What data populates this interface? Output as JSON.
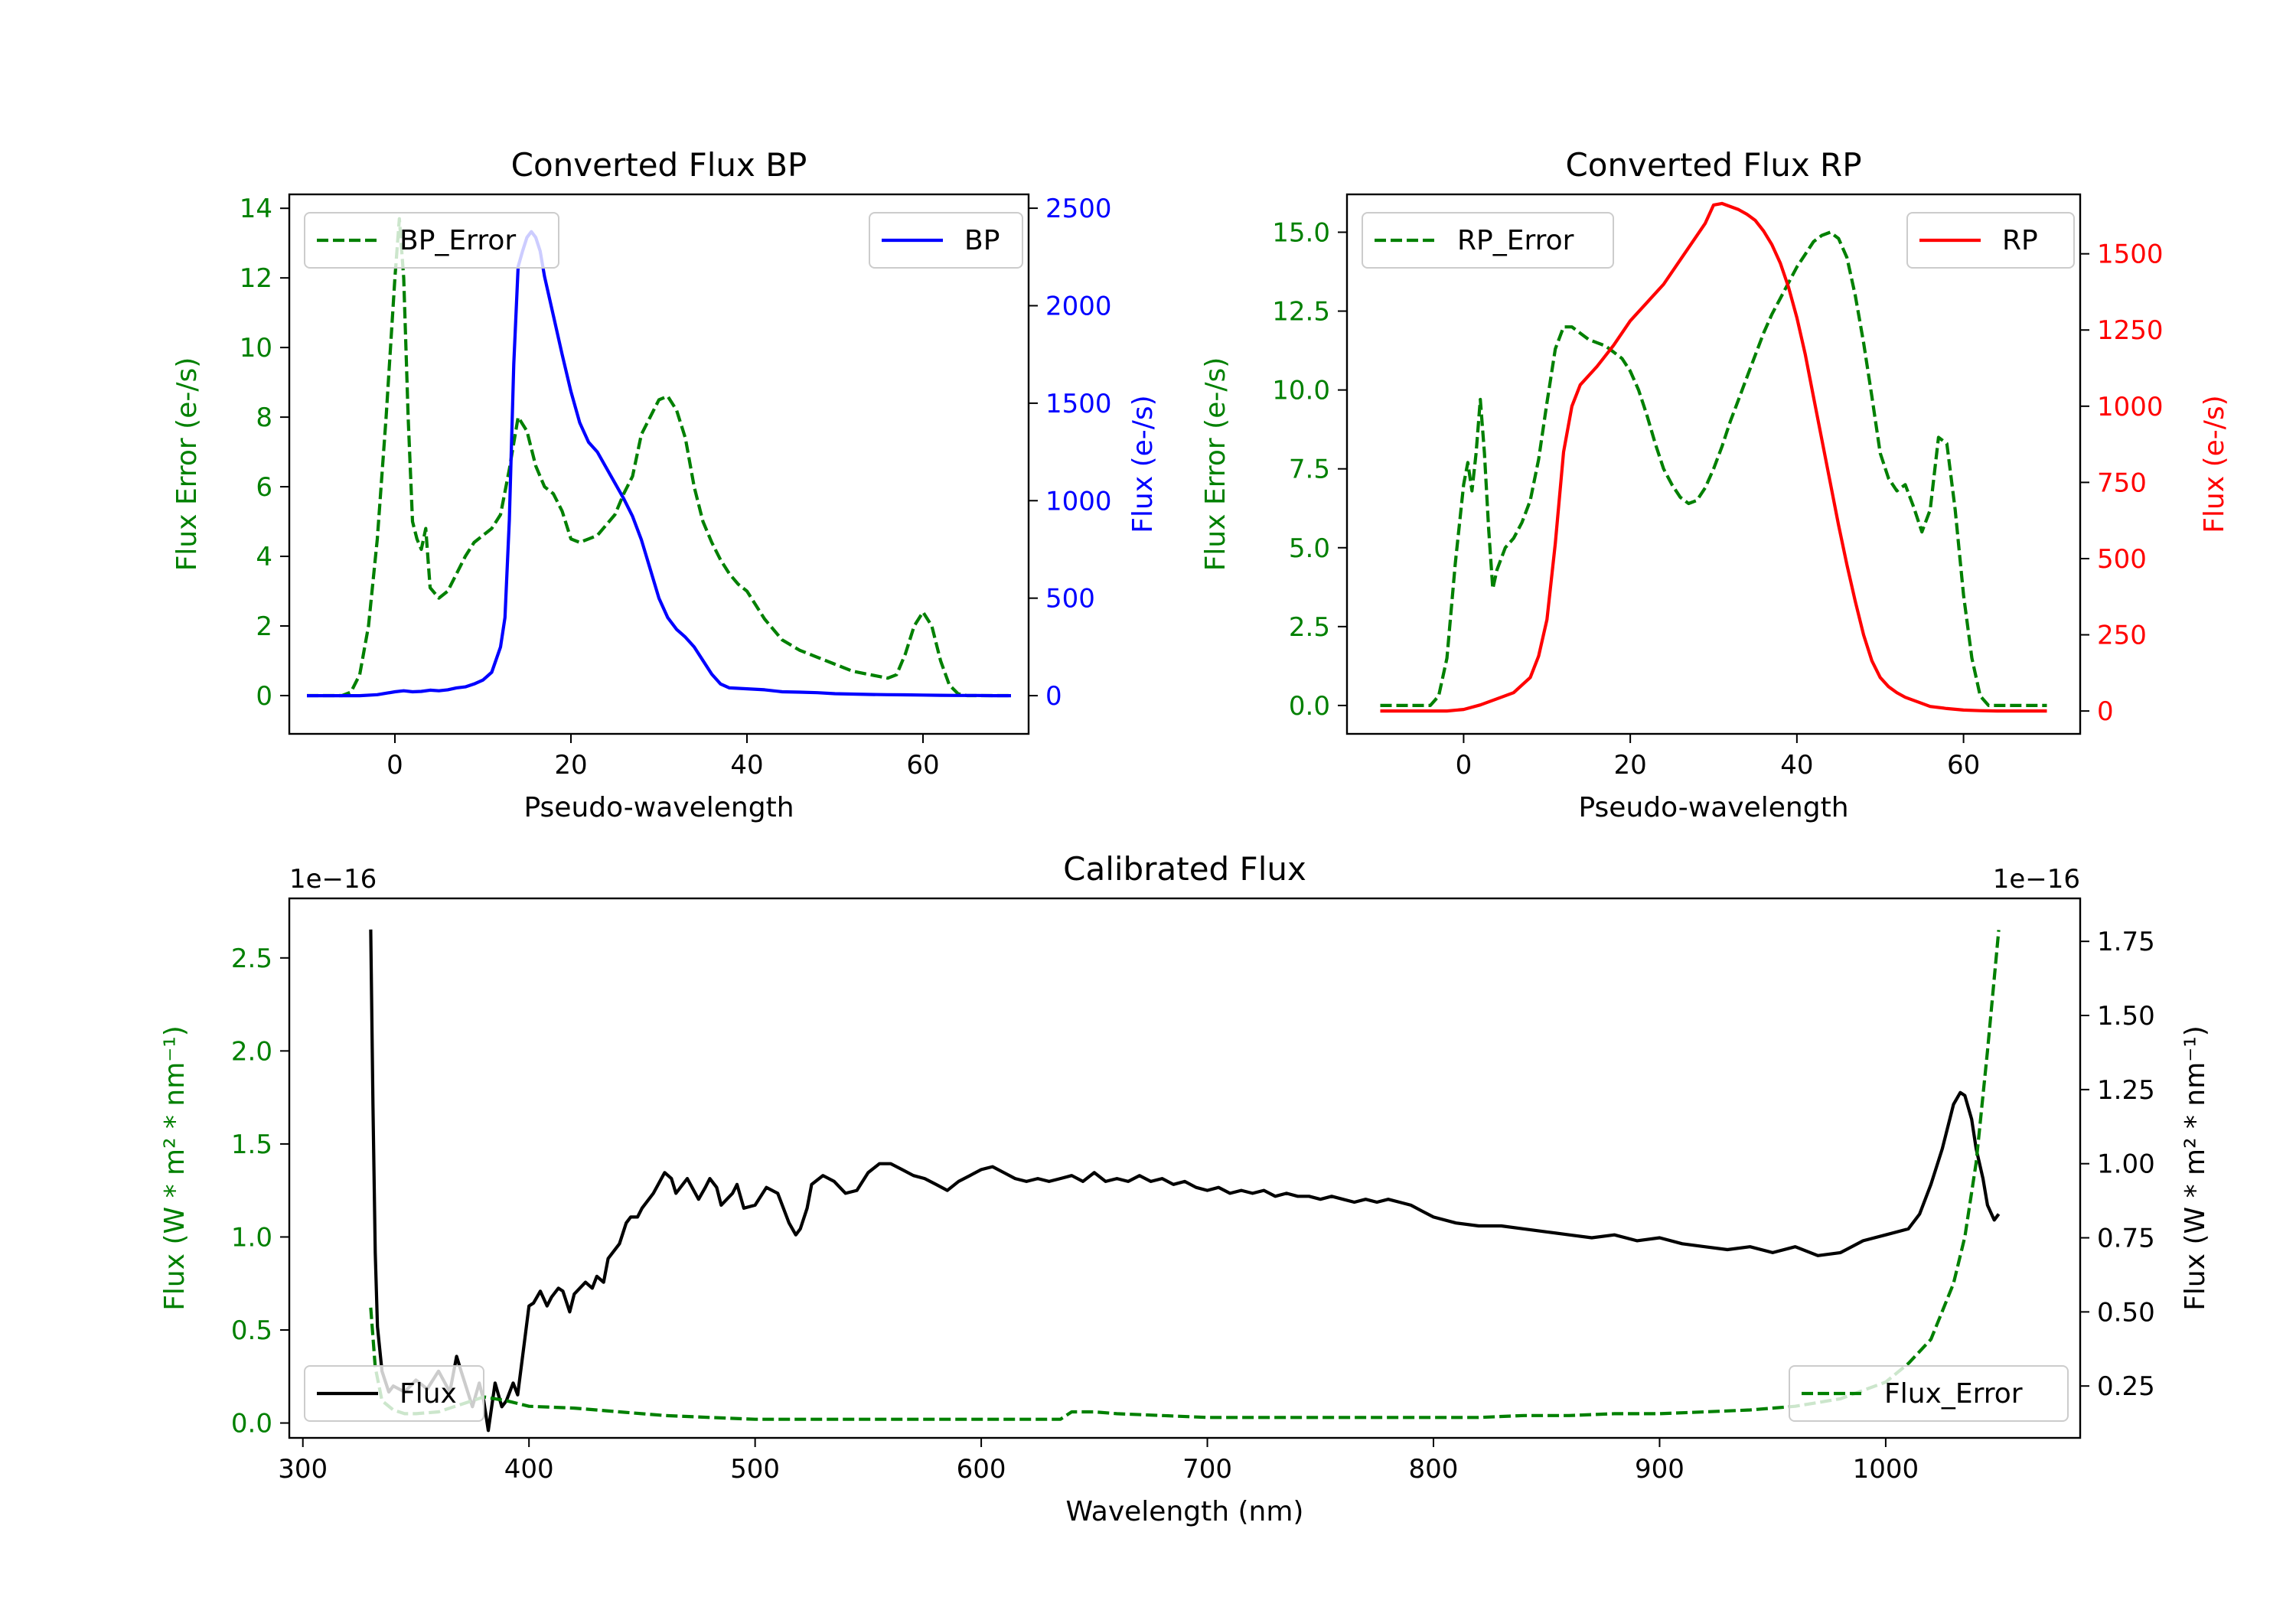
{
  "chart_data": [
    {
      "type": "line",
      "title": "Converted Flux BP",
      "xlabel": "Pseudo-wavelength",
      "ylabel_left": "Flux Error (e-/s)",
      "ylabel_right": "Flux (e-/s)",
      "xlim": [
        -12,
        72
      ],
      "ylim_left": [
        -1.1,
        14.4
      ],
      "ylim_right": [
        -196,
        2571
      ],
      "xticks": [
        0,
        20,
        40,
        60
      ],
      "yticks_left": [
        0,
        2,
        4,
        6,
        8,
        10,
        12,
        14
      ],
      "yticks_right": [
        0,
        500,
        1000,
        1500,
        2000,
        2500
      ],
      "legend_left": "top-left",
      "legend_right": "top-right",
      "colors": {
        "left": "#008000",
        "right": "#0000ff"
      },
      "series": [
        {
          "name": "BP_Error",
          "axis": "left",
          "style": "dashed",
          "x": [
            -10,
            -6,
            -5,
            -4,
            -3,
            -2,
            -1,
            0,
            0.5,
            1,
            1.5,
            2,
            2.5,
            3,
            3.5,
            4,
            5,
            6,
            7,
            8,
            9,
            10,
            11,
            12,
            13,
            14,
            15,
            16,
            17,
            18,
            19,
            20,
            21,
            22,
            23,
            24,
            25,
            26,
            27,
            28,
            29,
            30,
            31,
            32,
            33,
            34,
            35,
            36,
            37,
            38,
            39,
            40,
            42,
            44,
            46,
            48,
            50,
            52,
            54,
            56,
            57,
            58,
            59,
            60,
            61,
            62,
            63,
            64,
            65,
            70
          ],
          "values": [
            0,
            0,
            0.1,
            0.6,
            2,
            4.5,
            8,
            12,
            13.7,
            12,
            8,
            5,
            4.5,
            4.2,
            4.8,
            3.1,
            2.8,
            3.0,
            3.5,
            4.0,
            4.4,
            4.6,
            4.8,
            5.2,
            6.5,
            8.0,
            7.6,
            6.6,
            6.0,
            5.8,
            5.3,
            4.5,
            4.4,
            4.5,
            4.6,
            4.9,
            5.2,
            5.8,
            6.3,
            7.5,
            8.0,
            8.5,
            8.6,
            8.2,
            7.4,
            6.0,
            5.0,
            4.4,
            3.9,
            3.5,
            3.2,
            3.0,
            2.2,
            1.6,
            1.3,
            1.1,
            0.9,
            0.7,
            0.6,
            0.5,
            0.6,
            1.2,
            2.0,
            2.4,
            2.0,
            1.0,
            0.3,
            0.05,
            0,
            0
          ]
        },
        {
          "name": "BP",
          "axis": "right",
          "style": "solid",
          "x": [
            -10,
            -8,
            -6,
            -4,
            -2,
            0,
            1,
            2,
            3,
            4,
            5,
            6,
            7,
            8,
            9,
            10,
            11,
            12,
            12.5,
            13,
            13.5,
            14,
            14.5,
            15,
            15.5,
            16,
            16.5,
            17,
            18,
            19,
            20,
            21,
            22,
            23,
            24,
            25,
            26,
            27,
            28,
            29,
            30,
            31,
            32,
            33,
            34,
            35,
            36,
            37,
            38,
            40,
            42,
            44,
            46,
            48,
            50,
            52,
            54,
            56,
            58,
            60,
            62,
            64,
            66,
            68,
            70
          ],
          "values": [
            0,
            0,
            0,
            0,
            5,
            20,
            25,
            20,
            22,
            28,
            25,
            30,
            40,
            45,
            60,
            80,
            120,
            250,
            400,
            900,
            1700,
            2200,
            2280,
            2350,
            2380,
            2350,
            2280,
            2150,
            1950,
            1750,
            1560,
            1400,
            1300,
            1250,
            1170,
            1090,
            1010,
            920,
            800,
            650,
            500,
            400,
            340,
            300,
            250,
            180,
            110,
            60,
            40,
            35,
            30,
            20,
            18,
            15,
            10,
            8,
            6,
            5,
            4,
            3,
            2,
            1,
            1,
            0,
            0
          ]
        }
      ]
    },
    {
      "type": "line",
      "title": "Converted Flux RP",
      "xlabel": "Pseudo-wavelength",
      "ylabel_left": "Flux Error (e-/s)",
      "ylabel_right": "Flux (e-/s)",
      "xlim": [
        -14,
        74
      ],
      "ylim_left": [
        -0.9,
        16.2
      ],
      "ylim_right": [
        -75,
        1695
      ],
      "xticks": [
        0,
        20,
        40,
        60
      ],
      "yticks_left": [
        "0.0",
        "2.5",
        "5.0",
        "7.5",
        "10.0",
        "12.5",
        "15.0"
      ],
      "yticks_right": [
        0,
        250,
        500,
        750,
        1000,
        1250,
        1500
      ],
      "legend_left": "top-left",
      "legend_right": "top-right",
      "colors": {
        "left": "#008000",
        "right": "#ff0000"
      },
      "series": [
        {
          "name": "RP_Error",
          "axis": "left",
          "style": "dashed",
          "x": [
            -10,
            -5,
            -4,
            -3,
            -2,
            -1,
            0,
            0.5,
            1,
            1.5,
            2,
            2.5,
            3,
            3.5,
            4,
            5,
            6,
            7,
            8,
            9,
            10,
            11,
            12,
            13,
            14,
            15,
            16,
            17,
            18,
            19,
            20,
            21,
            22,
            23,
            24,
            25,
            26,
            27,
            28,
            29,
            30,
            31,
            32,
            33,
            34,
            35,
            36,
            37,
            38,
            39,
            40,
            41,
            42,
            43,
            44,
            45,
            46,
            47,
            48,
            49,
            50,
            51,
            52,
            53,
            54,
            55,
            56,
            57,
            58,
            59,
            60,
            61,
            62,
            63,
            64,
            65,
            70
          ],
          "values": [
            0,
            0,
            0,
            0.3,
            1.5,
            4.5,
            7.0,
            7.7,
            6.8,
            8.0,
            9.7,
            8.0,
            5.6,
            3.7,
            4.3,
            5.0,
            5.3,
            5.8,
            6.5,
            7.8,
            9.6,
            11.3,
            12.0,
            12.0,
            11.8,
            11.6,
            11.5,
            11.4,
            11.2,
            11.0,
            10.6,
            10.0,
            9.2,
            8.3,
            7.5,
            7.0,
            6.6,
            6.4,
            6.5,
            6.9,
            7.5,
            8.2,
            9.0,
            9.7,
            10.4,
            11.1,
            11.8,
            12.4,
            12.9,
            13.4,
            13.9,
            14.3,
            14.7,
            14.9,
            15.0,
            14.8,
            14.2,
            13.0,
            11.5,
            9.8,
            8.0,
            7.2,
            6.8,
            7.0,
            6.3,
            5.5,
            6.2,
            8.5,
            8.3,
            6.2,
            3.5,
            1.5,
            0.3,
            0,
            0,
            0,
            0
          ]
        },
        {
          "name": "RP",
          "axis": "right",
          "style": "solid",
          "x": [
            -10,
            -5,
            -2,
            0,
            2,
            4,
            6,
            8,
            9,
            10,
            11,
            12,
            13,
            14,
            16,
            18,
            20,
            22,
            24,
            26,
            28,
            29,
            30,
            31,
            32,
            33,
            34,
            35,
            36,
            37,
            38,
            39,
            40,
            41,
            42,
            43,
            44,
            45,
            46,
            47,
            48,
            49,
            50,
            51,
            52,
            53,
            54,
            55,
            56,
            58,
            60,
            62,
            64,
            66,
            70
          ],
          "values": [
            0,
            0,
            0,
            5,
            20,
            40,
            60,
            110,
            180,
            300,
            550,
            850,
            1000,
            1070,
            1130,
            1200,
            1280,
            1340,
            1400,
            1480,
            1560,
            1600,
            1660,
            1665,
            1655,
            1645,
            1630,
            1610,
            1575,
            1530,
            1470,
            1390,
            1290,
            1170,
            1030,
            890,
            750,
            610,
            480,
            360,
            250,
            165,
            110,
            80,
            60,
            45,
            35,
            25,
            15,
            8,
            3,
            1,
            0,
            0,
            0
          ]
        }
      ]
    },
    {
      "type": "line",
      "title": "Calibrated Flux",
      "xlabel": "Wavelength (nm)",
      "ylabel_left": "Flux (W * m² * nm⁻¹)",
      "ylabel_right": "Flux (W * m² * nm⁻¹)",
      "offset_left": "1e−16",
      "offset_right": "1e−16",
      "xlim": [
        294,
        1086
      ],
      "ylim_left": [
        -0.08,
        2.82
      ],
      "ylim_right": [
        0.075,
        1.895
      ],
      "xticks": [
        300,
        400,
        500,
        600,
        700,
        800,
        900,
        1000
      ],
      "yticks_left": [
        "0.0",
        "0.5",
        "1.0",
        "1.5",
        "2.0",
        "2.5"
      ],
      "yticks_right": [
        "0.25",
        "0.50",
        "0.75",
        "1.00",
        "1.25",
        "1.50",
        "1.75"
      ],
      "legend_left": "bottom-left",
      "legend_right": "bottom-right",
      "colors": {
        "left": "#008000",
        "right": "#000000"
      },
      "series": [
        {
          "name": "Flux",
          "axis": "right",
          "style": "solid",
          "x": [
            330,
            331,
            332,
            333,
            335,
            338,
            340,
            345,
            350,
            355,
            360,
            365,
            368,
            370,
            375,
            378,
            380,
            382,
            385,
            388,
            390,
            393,
            395,
            398,
            400,
            402,
            405,
            408,
            410,
            413,
            415,
            418,
            420,
            425,
            428,
            430,
            433,
            435,
            440,
            443,
            445,
            448,
            450,
            455,
            460,
            463,
            465,
            470,
            475,
            478,
            480,
            483,
            485,
            490,
            492,
            495,
            500,
            505,
            510,
            515,
            518,
            520,
            523,
            525,
            530,
            535,
            540,
            545,
            550,
            555,
            560,
            565,
            570,
            575,
            580,
            585,
            590,
            595,
            600,
            605,
            610,
            615,
            620,
            625,
            630,
            635,
            640,
            645,
            650,
            655,
            660,
            665,
            670,
            675,
            680,
            685,
            690,
            695,
            700,
            705,
            710,
            715,
            720,
            725,
            730,
            735,
            740,
            745,
            750,
            755,
            760,
            765,
            770,
            775,
            780,
            785,
            790,
            795,
            800,
            810,
            820,
            830,
            840,
            850,
            860,
            870,
            880,
            890,
            900,
            910,
            920,
            930,
            940,
            950,
            960,
            970,
            980,
            990,
            1000,
            1010,
            1015,
            1020,
            1025,
            1030,
            1033,
            1035,
            1038,
            1040,
            1043,
            1045,
            1048,
            1050
          ],
          "values": [
            1.79,
            1.2,
            0.7,
            0.45,
            0.3,
            0.23,
            0.25,
            0.23,
            0.27,
            0.24,
            0.3,
            0.23,
            0.35,
            0.3,
            0.18,
            0.26,
            0.2,
            0.1,
            0.26,
            0.18,
            0.2,
            0.26,
            0.22,
            0.4,
            0.52,
            0.53,
            0.57,
            0.52,
            0.55,
            0.58,
            0.57,
            0.5,
            0.56,
            0.6,
            0.58,
            0.62,
            0.6,
            0.68,
            0.73,
            0.8,
            0.82,
            0.82,
            0.85,
            0.9,
            0.97,
            0.95,
            0.9,
            0.95,
            0.88,
            0.92,
            0.95,
            0.92,
            0.86,
            0.9,
            0.93,
            0.85,
            0.86,
            0.92,
            0.9,
            0.8,
            0.76,
            0.78,
            0.85,
            0.93,
            0.96,
            0.94,
            0.9,
            0.91,
            0.97,
            1.0,
            1.0,
            0.98,
            0.96,
            0.95,
            0.93,
            0.91,
            0.94,
            0.96,
            0.98,
            0.99,
            0.97,
            0.95,
            0.94,
            0.95,
            0.94,
            0.95,
            0.96,
            0.94,
            0.97,
            0.94,
            0.95,
            0.94,
            0.96,
            0.94,
            0.95,
            0.93,
            0.94,
            0.92,
            0.91,
            0.92,
            0.9,
            0.91,
            0.9,
            0.91,
            0.89,
            0.9,
            0.89,
            0.89,
            0.88,
            0.89,
            0.88,
            0.87,
            0.88,
            0.87,
            0.88,
            0.87,
            0.86,
            0.84,
            0.82,
            0.8,
            0.79,
            0.79,
            0.78,
            0.77,
            0.76,
            0.75,
            0.76,
            0.74,
            0.75,
            0.73,
            0.72,
            0.71,
            0.72,
            0.7,
            0.72,
            0.69,
            0.7,
            0.74,
            0.76,
            0.78,
            0.83,
            0.93,
            1.05,
            1.2,
            1.24,
            1.23,
            1.15,
            1.05,
            0.95,
            0.86,
            0.81,
            0.83
          ]
        },
        {
          "name": "Flux_Error",
          "axis": "left",
          "style": "dashed",
          "x": [
            330,
            332,
            335,
            340,
            345,
            350,
            360,
            370,
            380,
            390,
            400,
            420,
            440,
            460,
            480,
            500,
            520,
            540,
            560,
            580,
            600,
            620,
            635,
            640,
            650,
            660,
            680,
            700,
            720,
            740,
            760,
            780,
            800,
            820,
            840,
            860,
            880,
            900,
            920,
            940,
            960,
            980,
            1000,
            1010,
            1020,
            1025,
            1030,
            1035,
            1040,
            1045,
            1050
          ],
          "values": [
            0.62,
            0.3,
            0.12,
            0.07,
            0.05,
            0.05,
            0.06,
            0.1,
            0.14,
            0.12,
            0.09,
            0.08,
            0.06,
            0.04,
            0.03,
            0.02,
            0.02,
            0.02,
            0.02,
            0.02,
            0.02,
            0.02,
            0.02,
            0.06,
            0.06,
            0.05,
            0.04,
            0.03,
            0.03,
            0.03,
            0.03,
            0.03,
            0.03,
            0.03,
            0.04,
            0.04,
            0.05,
            0.05,
            0.06,
            0.07,
            0.09,
            0.13,
            0.22,
            0.32,
            0.45,
            0.6,
            0.75,
            1.0,
            1.4,
            2.0,
            2.65
          ]
        }
      ]
    }
  ]
}
